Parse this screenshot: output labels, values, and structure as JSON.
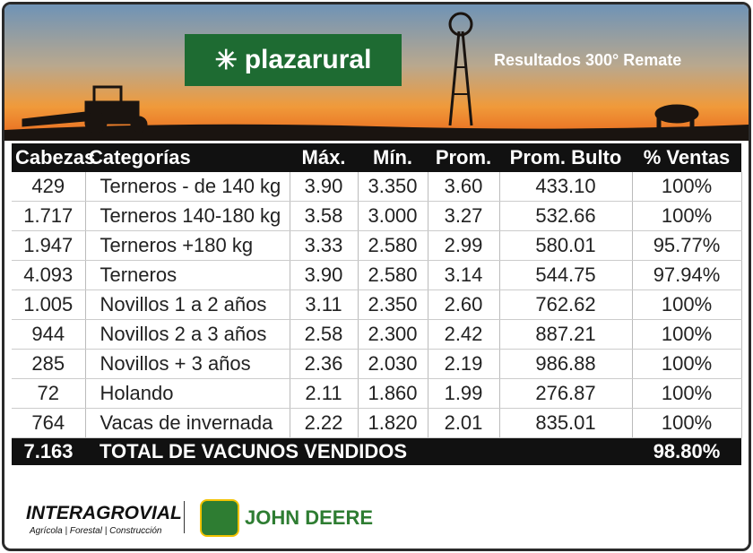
{
  "header": {
    "brand": "plazarural",
    "subtitle": "Resultados 300° Remate"
  },
  "table": {
    "columns": [
      "Cabezas",
      "Categorías",
      "Máx.",
      "Mín.",
      "Prom.",
      "Prom. Bulto",
      "% Ventas"
    ],
    "rows": [
      [
        "429",
        "Terneros - de 140 kg",
        "3.90",
        "3.350",
        "3.60",
        "433.10",
        "100%"
      ],
      [
        "1.717",
        "Terneros 140-180 kg",
        "3.58",
        "3.000",
        "3.27",
        "532.66",
        "100%"
      ],
      [
        "1.947",
        "Terneros +180 kg",
        "3.33",
        "2.580",
        "2.99",
        "580.01",
        "95.77%"
      ],
      [
        "4.093",
        "Terneros",
        "3.90",
        "2.580",
        "3.14",
        "544.75",
        "97.94%"
      ],
      [
        "1.005",
        "Novillos 1 a 2 años",
        "3.11",
        "2.350",
        "2.60",
        "762.62",
        "100%"
      ],
      [
        "944",
        "Novillos 2 a 3 años",
        "2.58",
        "2.300",
        "2.42",
        "887.21",
        "100%"
      ],
      [
        "285",
        "Novillos + 3 años",
        "2.36",
        "2.030",
        "2.19",
        "986.88",
        "100%"
      ],
      [
        "72",
        "Holando",
        "2.11",
        "1.860",
        "1.99",
        "276.87",
        "100%"
      ],
      [
        "764",
        "Vacas de invernada",
        "2.22",
        "1.820",
        "2.01",
        "835.01",
        "100%"
      ]
    ],
    "total": {
      "heads": "7.163",
      "label": "TOTAL DE VACUNOS VENDIDOS",
      "percent": "98.80%"
    }
  },
  "footer": {
    "sponsor1": "INTERAGROVIAL",
    "sponsor1_tagline": "Agrícola | Forestal | Construcción",
    "sponsor2": "JOHN DEERE"
  }
}
